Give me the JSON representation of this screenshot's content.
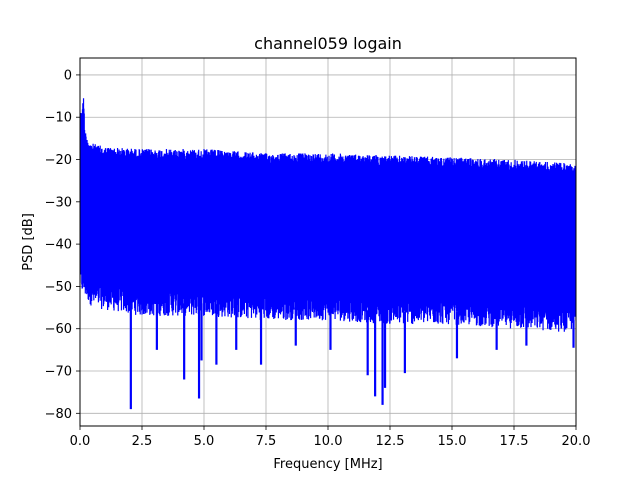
{
  "chart_data": {
    "type": "line",
    "title": "channel059 logain",
    "xlabel": "Frequency [MHz]",
    "ylabel": "PSD [dB]",
    "xlim": [
      0,
      20
    ],
    "ylim": [
      -83,
      4
    ],
    "grid": true,
    "x_ticks": [
      0.0,
      2.5,
      5.0,
      7.5,
      10.0,
      12.5,
      15.0,
      17.5,
      20.0
    ],
    "x_tick_labels": [
      "0.0",
      "2.5",
      "5.0",
      "7.5",
      "10.0",
      "12.5",
      "15.0",
      "17.5",
      "20.0"
    ],
    "y_ticks": [
      0,
      -10,
      -20,
      -30,
      -40,
      -50,
      -60,
      -70,
      -80
    ],
    "y_tick_labels": [
      "0",
      "−10",
      "−20",
      "−30",
      "−40",
      "−50",
      "−60",
      "−70",
      "−80"
    ],
    "series": [
      {
        "color": "#0000ff",
        "upper_envelope": {
          "x": [
            0.0,
            0.15,
            0.2,
            0.4,
            1.0,
            2.5,
            4.0,
            5.0,
            7.5,
            10.0,
            12.5,
            15.0,
            17.5,
            20.0
          ],
          "y": [
            -10,
            -5,
            -13,
            -16,
            -17,
            -17.5,
            -17.5,
            -17.5,
            -18.5,
            -18.5,
            -19,
            -19.5,
            -20,
            -21
          ]
        },
        "lower_envelope": {
          "x": [
            0.0,
            0.5,
            2.5,
            5.0,
            7.5,
            10.0,
            12.5,
            15.0,
            17.5,
            20.0
          ],
          "y": [
            -48,
            -52,
            -54,
            -54,
            -55,
            -55,
            -56,
            -56,
            -57,
            -58
          ]
        },
        "deep_nulls": [
          {
            "x": 2.05,
            "y": -79
          },
          {
            "x": 3.1,
            "y": -65
          },
          {
            "x": 4.2,
            "y": -72
          },
          {
            "x": 4.8,
            "y": -76.5
          },
          {
            "x": 4.9,
            "y": -67.5
          },
          {
            "x": 5.5,
            "y": -68.5
          },
          {
            "x": 6.3,
            "y": -65
          },
          {
            "x": 7.3,
            "y": -68.5
          },
          {
            "x": 8.7,
            "y": -64
          },
          {
            "x": 10.1,
            "y": -65
          },
          {
            "x": 11.6,
            "y": -71
          },
          {
            "x": 11.9,
            "y": -76
          },
          {
            "x": 12.2,
            "y": -78
          },
          {
            "x": 12.3,
            "y": -74
          },
          {
            "x": 13.1,
            "y": -70.5
          },
          {
            "x": 15.2,
            "y": -67
          },
          {
            "x": 16.8,
            "y": -65
          },
          {
            "x": 18.0,
            "y": -64
          },
          {
            "x": 19.9,
            "y": -64.5
          }
        ]
      }
    ]
  }
}
